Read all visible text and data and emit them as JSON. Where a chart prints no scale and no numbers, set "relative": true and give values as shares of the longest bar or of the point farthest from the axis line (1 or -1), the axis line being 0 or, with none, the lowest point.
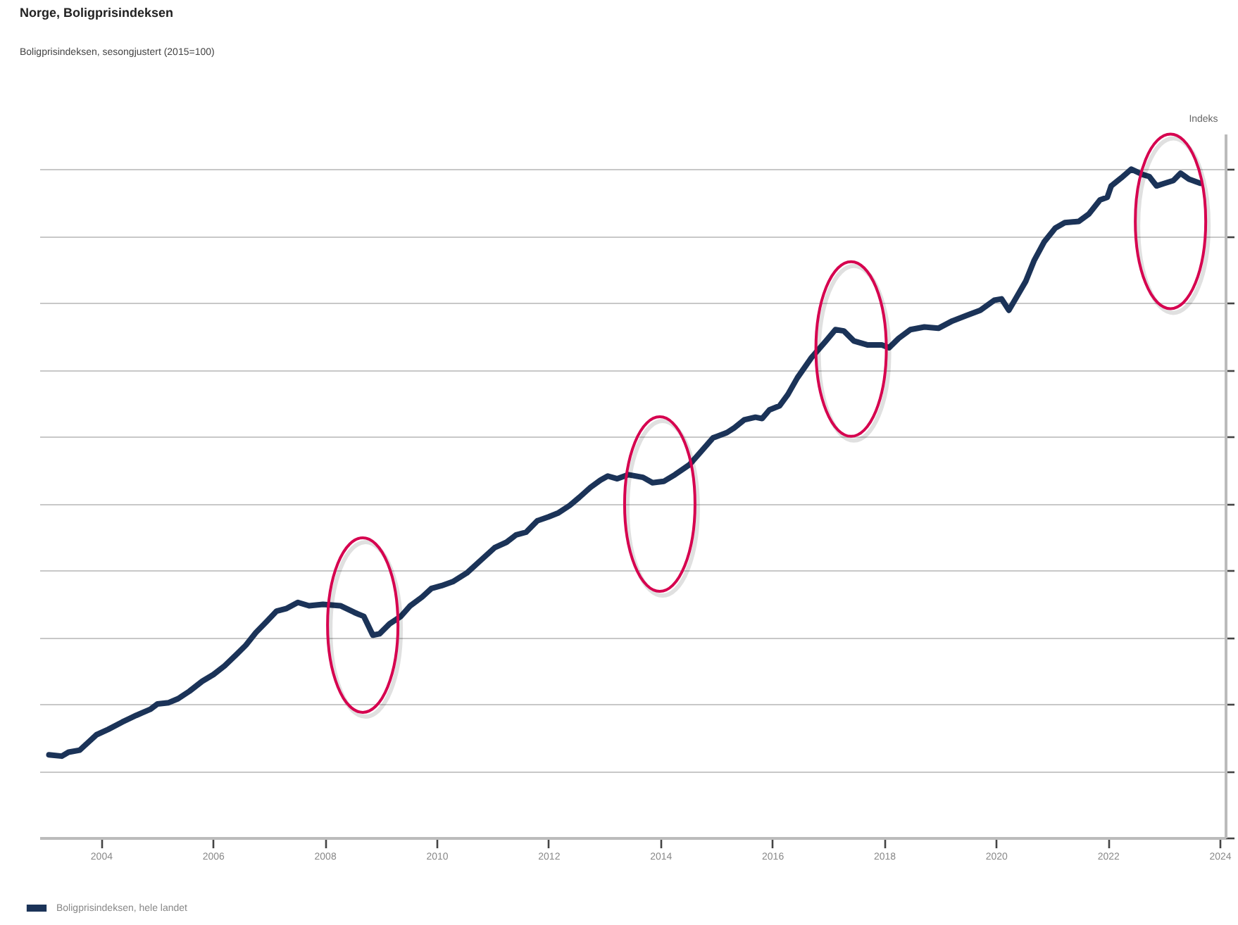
{
  "chart_data": {
    "type": "line",
    "title": "Norge, Boligprisindeksen",
    "subtitle": "Boligprisindeksen, sesongjustert (2015=100)",
    "ylabel": "Indeks",
    "relative": true,
    "grid": "y",
    "legend": "bottom left",
    "line_style": "solid",
    "marker": "none",
    "xlim": [
      2002.9,
      2024.1
    ],
    "xticks": [
      2004,
      2006,
      2008,
      2010,
      2012,
      2014,
      2016,
      2018,
      2020,
      2022,
      2024
    ],
    "series": [
      {
        "name": "Boligprisindeksen, hele landet",
        "color": "#1b3358",
        "x": [
          2003.07,
          2003.3,
          2003.42,
          2003.62,
          2003.75,
          2003.92,
          2004.13,
          2004.38,
          2004.63,
          2004.88,
          2005.01,
          2005.21,
          2005.38,
          2005.58,
          2005.81,
          2006.01,
          2006.21,
          2006.42,
          2006.59,
          2006.77,
          2006.97,
          2007.14,
          2007.32,
          2007.52,
          2007.72,
          2007.97,
          2008.28,
          2008.53,
          2008.7,
          2008.86,
          2008.98,
          2009.16,
          2009.36,
          2009.53,
          2009.74,
          2009.91,
          2010.09,
          2010.29,
          2010.54,
          2010.79,
          2011.04,
          2011.25,
          2011.42,
          2011.6,
          2011.8,
          2012.0,
          2012.18,
          2012.38,
          2012.55,
          2012.75,
          2012.93,
          2013.06,
          2013.23,
          2013.43,
          2013.69,
          2013.86,
          2014.06,
          2014.26,
          2014.52,
          2014.72,
          2014.94,
          2015.19,
          2015.32,
          2015.5,
          2015.7,
          2015.82,
          2015.95,
          2016.13,
          2016.28,
          2016.45,
          2016.7,
          2016.96,
          2017.13,
          2017.28,
          2017.46,
          2017.71,
          2017.96,
          2018.09,
          2018.26,
          2018.47,
          2018.72,
          2018.97,
          2019.22,
          2019.47,
          2019.72,
          2019.97,
          2020.1,
          2020.23,
          2020.35,
          2020.53,
          2020.68,
          2020.86,
          2021.06,
          2021.23,
          2021.48,
          2021.66,
          2021.86,
          2021.99,
          2022.06,
          2022.24,
          2022.42,
          2022.62,
          2022.74,
          2022.87,
          2023.02,
          2023.17,
          2023.3,
          2023.45,
          2023.65
        ],
        "values": [
          0.124,
          0.122,
          0.128,
          0.131,
          0.141,
          0.154,
          0.162,
          0.173,
          0.183,
          0.192,
          0.2,
          0.202,
          0.208,
          0.219,
          0.234,
          0.244,
          0.257,
          0.274,
          0.288,
          0.307,
          0.324,
          0.339,
          0.343,
          0.352,
          0.347,
          0.349,
          0.347,
          0.337,
          0.331,
          0.303,
          0.305,
          0.32,
          0.331,
          0.347,
          0.36,
          0.373,
          0.377,
          0.383,
          0.396,
          0.415,
          0.434,
          0.442,
          0.453,
          0.457,
          0.474,
          0.48,
          0.486,
          0.497,
          0.509,
          0.524,
          0.535,
          0.541,
          0.537,
          0.543,
          0.539,
          0.531,
          0.533,
          0.543,
          0.558,
          0.577,
          0.598,
          0.606,
          0.613,
          0.625,
          0.629,
          0.627,
          0.64,
          0.646,
          0.663,
          0.688,
          0.718,
          0.743,
          0.76,
          0.758,
          0.743,
          0.737,
          0.737,
          0.733,
          0.747,
          0.76,
          0.764,
          0.762,
          0.773,
          0.781,
          0.789,
          0.804,
          0.806,
          0.789,
          0.806,
          0.832,
          0.863,
          0.891,
          0.912,
          0.92,
          0.922,
          0.933,
          0.954,
          0.958,
          0.975,
          0.987,
          1.0,
          0.992,
          0.989,
          0.975,
          0.979,
          0.983,
          0.994,
          0.985,
          0.979
        ]
      }
    ]
  }
}
